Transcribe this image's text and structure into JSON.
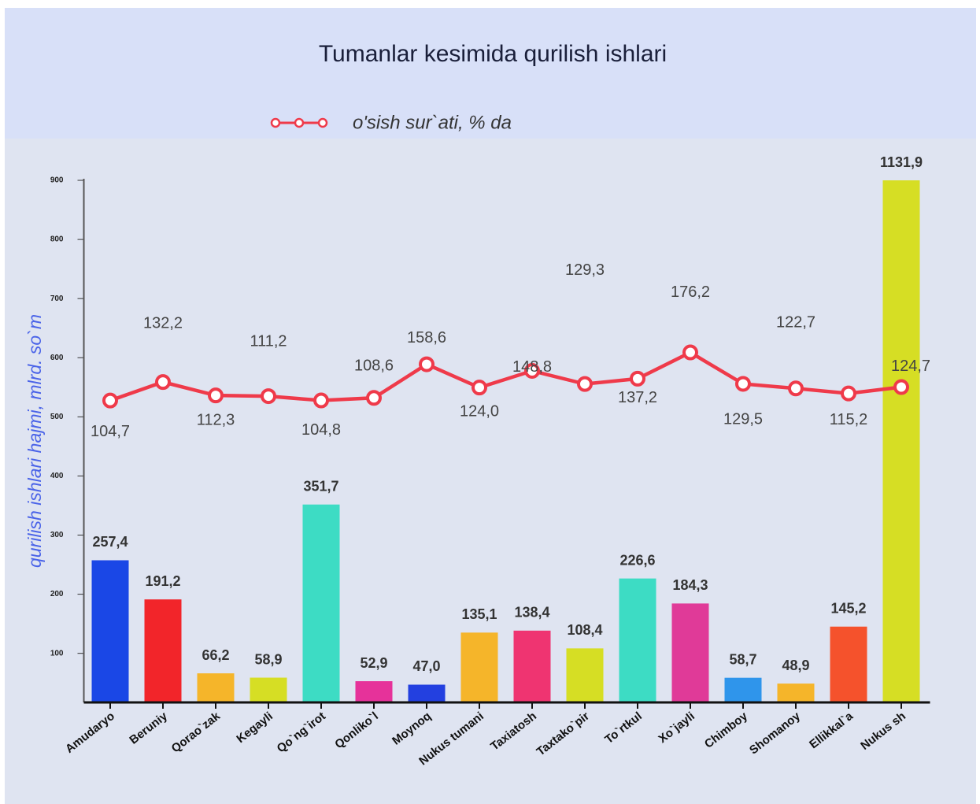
{
  "chart_data": {
    "type": "bar_line",
    "title": "Tumanlar kesimida qurilish ishlari",
    "ylabel": "qurilish ishlari hajmi, mlrd. so`m",
    "categories": [
      "Amudaryo",
      "Beruniy",
      "Qorao`zak",
      "Kegayli",
      "Qo`ng`irot",
      "Qonliko`l",
      "Moynoq",
      "Nukus tumani",
      "Taxiatosh",
      "Taxtako`pir",
      "To`rtkul",
      "Xo`jayli",
      "Chimboy",
      "Shomanoy",
      "Ellikkal`a",
      "Nukus sh"
    ],
    "series": [
      {
        "type": "bar",
        "values": [
          257.4,
          191.2,
          66.2,
          58.9,
          351.7,
          52.9,
          47.0,
          135.1,
          138.4,
          108.4,
          226.6,
          184.3,
          58.7,
          48.9,
          145.2,
          1131.9
        ],
        "value_labels": [
          "257,4",
          "191,2",
          "66,2",
          "58,9",
          "351,7",
          "52,9",
          "47,0",
          "135,1",
          "138,4",
          "108,4",
          "226,6",
          "184,3",
          "58,7",
          "48,9",
          "145,2",
          "1131,9"
        ],
        "colors": [
          "#1a47e6",
          "#f2252a",
          "#f5b52a",
          "#d6de24",
          "#3ddcc4",
          "#e6329a",
          "#2340e0",
          "#f5b52a",
          "#ef3471",
          "#d6de24",
          "#3ddcc4",
          "#e03a98",
          "#2f95eb",
          "#f5b52a",
          "#f5522c",
          "#d6de24"
        ]
      },
      {
        "type": "line",
        "name": "o'sish sur`ati, % da",
        "color": "#ef3a4a",
        "axis": "y2",
        "values": [
          104.7,
          132.2,
          112.3,
          111.2,
          104.8,
          108.6,
          158.6,
          124.0,
          148.8,
          129.3,
          137.2,
          176.2,
          129.5,
          122.7,
          115.2,
          124.7
        ],
        "value_labels": [
          "104,7",
          "132,2",
          "112,3",
          "111,2",
          "104,8",
          "108,6",
          "158,6",
          "124,0",
          "148,8",
          "129,3",
          "137,2",
          "176,2",
          "129,5",
          "122,7",
          "115,2",
          "124,7"
        ]
      }
    ],
    "ylim": [
      17,
      900
    ],
    "yticks": [
      100,
      200,
      300,
      400,
      500,
      600,
      700,
      800,
      900
    ],
    "y2lim": [
      -344,
      432
    ]
  }
}
